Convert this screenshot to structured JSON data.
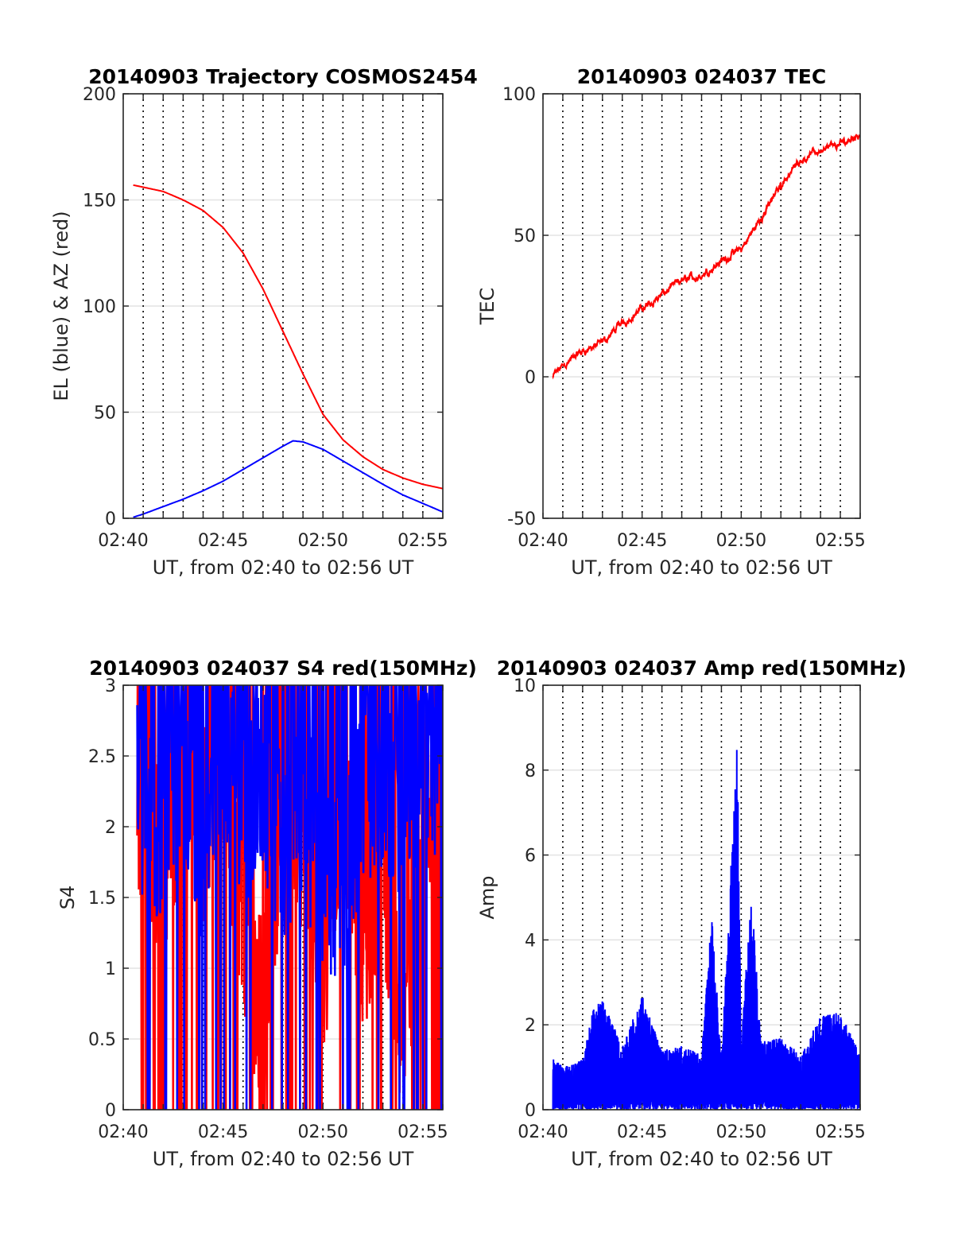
{
  "chart_data": [
    {
      "type": "line",
      "title": "20140903 Trajectory COSMOS2454",
      "xlabel": "UT, from 02:40 to 02:56 UT",
      "ylabel": "EL (blue) & AZ (red)",
      "xlim": [
        "02:40",
        "02:56"
      ],
      "ylim": [
        0,
        200
      ],
      "xticks": [
        "02:40",
        "02:45",
        "02:50",
        "02:55"
      ],
      "yticks": [
        "0",
        "50",
        "100",
        "150",
        "200"
      ],
      "grid": true,
      "series": [
        {
          "color": "#ff0000",
          "x": [
            "02:40.5",
            "02:41",
            "02:42",
            "02:43",
            "02:44",
            "02:45",
            "02:46",
            "02:47",
            "02:48",
            "02:49",
            "02:50",
            "02:51",
            "02:52",
            "02:53",
            "02:54",
            "02:55",
            "02:56"
          ],
          "values": [
            157,
            156,
            154,
            150,
            145,
            137,
            125,
            108,
            88,
            68,
            49,
            37,
            29,
            23,
            19,
            16,
            14
          ]
        },
        {
          "color": "#0000ff",
          "x": [
            "02:40.5",
            "02:41",
            "02:42",
            "02:43",
            "02:44",
            "02:45",
            "02:46",
            "02:47",
            "02:48",
            "02:48.5",
            "02:49",
            "02:50",
            "02:51",
            "02:52",
            "02:53",
            "02:54",
            "02:55",
            "02:56"
          ],
          "values": [
            0.5,
            2,
            5.5,
            9,
            13,
            17.5,
            23,
            28.5,
            34,
            36.5,
            36,
            32.5,
            27,
            21.5,
            16,
            11,
            7,
            3
          ]
        }
      ]
    },
    {
      "type": "line",
      "title": "20140903 024037 TEC",
      "xlabel": "UT, from 02:40 to 02:56 UT",
      "ylabel": "TEC",
      "xlim": [
        "02:40",
        "02:56"
      ],
      "ylim": [
        -50,
        100
      ],
      "xticks": [
        "02:40",
        "02:45",
        "02:50",
        "02:55"
      ],
      "yticks": [
        "-50",
        "0",
        "50",
        "100"
      ],
      "grid": true,
      "series": [
        {
          "color": "#ff0000",
          "x": [
            "02:40.5",
            "02:41",
            "02:42",
            "02:43",
            "02:44",
            "02:45",
            "02:46",
            "02:47",
            "02:48",
            "02:49",
            "02:50",
            "02:51",
            "02:52",
            "02:53",
            "02:54",
            "02:55",
            "02:56"
          ],
          "values": [
            0,
            4,
            9,
            12,
            19,
            24,
            29,
            34,
            36,
            41,
            45,
            56,
            68,
            77,
            80,
            82,
            86
          ]
        }
      ]
    },
    {
      "type": "line",
      "title": "20140903 024037 S4 red(150MHz)",
      "xlabel": "UT, from 02:40 to 02:56 UT",
      "ylabel": "S4",
      "xlim": [
        "02:40",
        "02:56"
      ],
      "ylim": [
        0,
        3
      ],
      "xticks": [
        "02:40",
        "02:45",
        "02:50",
        "02:55"
      ],
      "yticks": [
        "0",
        "0.5",
        "1",
        "1.5",
        "2",
        "2.5",
        "3"
      ],
      "grid": true,
      "series": [
        {
          "color": "#ff0000",
          "x": [
            "02:41",
            "02:42",
            "02:43",
            "02:44",
            "02:45",
            "02:46",
            "02:47",
            "02:48",
            "02:49",
            "02:50",
            "02:51",
            "02:52",
            "02:53",
            "02:54",
            "02:55",
            "02:56"
          ],
          "values": [
            2.2,
            1.6,
            2.5,
            2.0,
            2.4,
            1.4,
            0.6,
            2.2,
            1.9,
            1.0,
            2.3,
            1.2,
            1.8,
            0.5,
            2.0,
            2.5
          ]
        },
        {
          "color": "#0000ff",
          "x": [
            "02:41",
            "02:42",
            "02:43",
            "02:44",
            "02:45",
            "02:46",
            "02:47",
            "02:48",
            "02:49",
            "02:50",
            "02:51",
            "02:52",
            "02:53",
            "02:54",
            "02:55",
            "02:56"
          ],
          "values": [
            2.2,
            2.0,
            2.3,
            1.8,
            2.5,
            2.1,
            2.3,
            1.8,
            2.1,
            1.7,
            1.5,
            2.3,
            2.4,
            2.0,
            2.6,
            2.3
          ]
        }
      ]
    },
    {
      "type": "line",
      "title": "20140903 024037 Amp red(150MHz)",
      "xlabel": "UT, from 02:40 to 02:56 UT",
      "ylabel": "Amp",
      "xlim": [
        "02:40",
        "02:56"
      ],
      "ylim": [
        0,
        10
      ],
      "xticks": [
        "02:40",
        "02:45",
        "02:50",
        "02:55"
      ],
      "yticks": [
        "0",
        "2",
        "4",
        "6",
        "8",
        "10"
      ],
      "grid": true,
      "series": [
        {
          "color": "#0000ff",
          "x": [
            "02:40.5",
            "02:41",
            "02:42",
            "02:42.5",
            "02:43",
            "02:44",
            "02:45",
            "02:46",
            "02:47",
            "02:48",
            "02:48.5",
            "02:49",
            "02:49.8",
            "02:50",
            "02:50.5",
            "02:51",
            "02:52",
            "02:53",
            "02:54",
            "02:55",
            "02:56"
          ],
          "values": [
            1.3,
            1.0,
            1.2,
            2.4,
            2.6,
            1.5,
            2.7,
            1.4,
            1.5,
            1.3,
            4.7,
            1.2,
            8.8,
            1.5,
            5.3,
            1.6,
            1.7,
            1.3,
            2.2,
            2.3,
            1.3
          ]
        }
      ]
    }
  ]
}
